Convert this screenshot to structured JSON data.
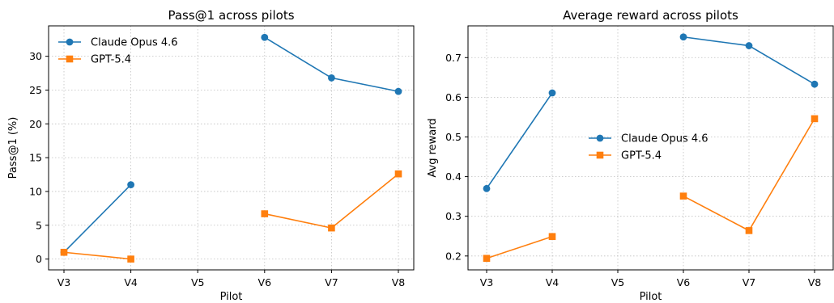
{
  "chart_data": [
    {
      "type": "line",
      "title": "Pass@1 across pilots",
      "xlabel": "Pilot",
      "ylabel": "Pass@1 (%)",
      "categories": [
        "V3",
        "V4",
        "V5",
        "V6",
        "V7",
        "V8"
      ],
      "ylim": [
        -1.6,
        34.5
      ],
      "yticks": [
        "0",
        "5",
        "10",
        "15",
        "20",
        "25",
        "30"
      ],
      "ytick_values": [
        0,
        5,
        10,
        15,
        20,
        25,
        30
      ],
      "grid": true,
      "legend_position": "top-left",
      "series": [
        {
          "name": "Claude Opus 4.6",
          "color": "#1f77b4",
          "marker": "circle",
          "values": [
            1.0,
            11.0,
            null,
            32.8,
            26.8,
            24.8
          ]
        },
        {
          "name": "GPT-5.4",
          "color": "#ff7f0e",
          "marker": "square",
          "values": [
            1.0,
            0.0,
            null,
            6.7,
            4.6,
            12.6
          ]
        }
      ]
    },
    {
      "type": "line",
      "title": "Average reward across pilots",
      "xlabel": "Pilot",
      "ylabel": "Avg reward",
      "categories": [
        "V3",
        "V4",
        "V5",
        "V6",
        "V7",
        "V8"
      ],
      "ylim": [
        0.165,
        0.78
      ],
      "yticks": [
        "0.2",
        "0.3",
        "0.4",
        "0.5",
        "0.6",
        "0.7"
      ],
      "ytick_values": [
        0.2,
        0.3,
        0.4,
        0.5,
        0.6,
        0.7
      ],
      "grid": true,
      "legend_position": "center",
      "series": [
        {
          "name": "Claude Opus 4.6",
          "color": "#1f77b4",
          "marker": "circle",
          "values": [
            0.37,
            0.611,
            null,
            0.752,
            0.73,
            0.633
          ]
        },
        {
          "name": "GPT-5.4",
          "color": "#ff7f0e",
          "marker": "square",
          "values": [
            0.194,
            0.249,
            null,
            0.351,
            0.264,
            0.546
          ]
        }
      ]
    }
  ]
}
